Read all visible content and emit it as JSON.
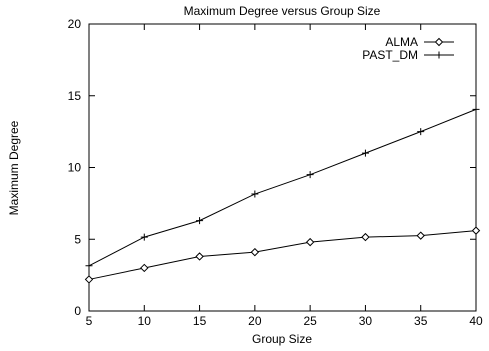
{
  "chart_data": {
    "type": "line",
    "title": "Maximum Degree versus Group Size",
    "xlabel": "Group Size",
    "ylabel": "Maximum Degree",
    "xlim": [
      5,
      40
    ],
    "ylim": [
      0,
      20
    ],
    "x_ticks": [
      5,
      10,
      15,
      20,
      25,
      30,
      35,
      40
    ],
    "y_ticks": [
      0,
      5,
      10,
      15,
      20
    ],
    "grid": false,
    "legend_position": "top-right",
    "x": [
      5,
      10,
      15,
      20,
      25,
      30,
      35,
      40
    ],
    "series": [
      {
        "name": "ALMA",
        "marker": "diamond",
        "values": [
          2.2,
          3.0,
          3.8,
          4.1,
          4.8,
          5.15,
          5.25,
          5.6
        ]
      },
      {
        "name": "PAST_DM",
        "marker": "plus",
        "values": [
          3.15,
          5.15,
          6.3,
          8.15,
          9.5,
          11.0,
          12.5,
          14.05
        ]
      }
    ]
  }
}
